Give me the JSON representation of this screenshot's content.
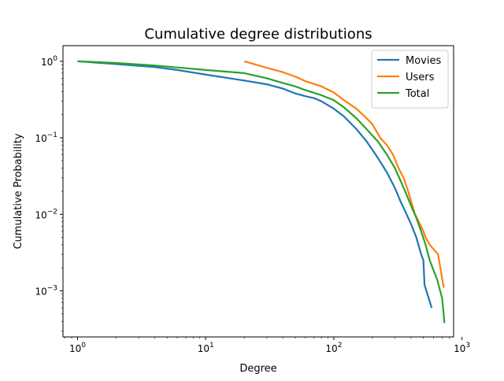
{
  "chart_data": {
    "type": "line",
    "title": "Cumulative degree distributions",
    "xlabel": "Degree",
    "ylabel": "Cumulative Probability",
    "x_scale": "log",
    "y_scale": "log",
    "xlim": [
      0.77,
      860
    ],
    "ylim": [
      0.00025,
      1.6
    ],
    "grid": false,
    "legend_position": "top-right",
    "x_ticks": [
      {
        "value": 1,
        "base": "10",
        "exp": "0"
      },
      {
        "value": 10,
        "base": "10",
        "exp": "1"
      },
      {
        "value": 100,
        "base": "10",
        "exp": "2"
      },
      {
        "value": 1000,
        "base": "10",
        "exp": "3"
      }
    ],
    "y_ticks": [
      {
        "value": 0.001,
        "base": "10",
        "exp": "−3"
      },
      {
        "value": 0.01,
        "base": "10",
        "exp": "−2"
      },
      {
        "value": 0.1,
        "base": "10",
        "exp": "−1"
      },
      {
        "value": 1,
        "base": "10",
        "exp": "0"
      }
    ],
    "series": [
      {
        "name": "Movies",
        "color": "#1f77b4",
        "points": [
          [
            1,
            1.0
          ],
          [
            2,
            0.92
          ],
          [
            4,
            0.84
          ],
          [
            6,
            0.77
          ],
          [
            10,
            0.67
          ],
          [
            20,
            0.56
          ],
          [
            30,
            0.5
          ],
          [
            40,
            0.44
          ],
          [
            50,
            0.38
          ],
          [
            60,
            0.35
          ],
          [
            70,
            0.33
          ],
          [
            80,
            0.3
          ],
          [
            100,
            0.24
          ],
          [
            120,
            0.19
          ],
          [
            150,
            0.13
          ],
          [
            180,
            0.09
          ],
          [
            220,
            0.055
          ],
          [
            260,
            0.035
          ],
          [
            300,
            0.022
          ],
          [
            330,
            0.015
          ],
          [
            360,
            0.011
          ],
          [
            400,
            0.0075
          ],
          [
            440,
            0.005
          ],
          [
            480,
            0.003
          ],
          [
            500,
            0.0025
          ],
          [
            510,
            0.0012
          ],
          [
            580,
            0.0006
          ]
        ]
      },
      {
        "name": "Users",
        "color": "#ff7f0e",
        "points": [
          [
            20,
            1.0
          ],
          [
            30,
            0.82
          ],
          [
            40,
            0.72
          ],
          [
            50,
            0.63
          ],
          [
            60,
            0.55
          ],
          [
            80,
            0.47
          ],
          [
            100,
            0.39
          ],
          [
            120,
            0.31
          ],
          [
            150,
            0.24
          ],
          [
            180,
            0.18
          ],
          [
            200,
            0.15
          ],
          [
            230,
            0.1
          ],
          [
            260,
            0.08
          ],
          [
            290,
            0.06
          ],
          [
            320,
            0.04
          ],
          [
            350,
            0.03
          ],
          [
            380,
            0.02
          ],
          [
            400,
            0.015
          ],
          [
            430,
            0.01
          ],
          [
            460,
            0.008
          ],
          [
            500,
            0.006
          ],
          [
            520,
            0.005
          ],
          [
            560,
            0.004
          ],
          [
            650,
            0.003
          ],
          [
            720,
            0.0011
          ]
        ]
      },
      {
        "name": "Total",
        "color": "#2ca02c",
        "points": [
          [
            1,
            1.0
          ],
          [
            2,
            0.95
          ],
          [
            4,
            0.88
          ],
          [
            6,
            0.83
          ],
          [
            10,
            0.77
          ],
          [
            20,
            0.7
          ],
          [
            30,
            0.6
          ],
          [
            40,
            0.52
          ],
          [
            50,
            0.47
          ],
          [
            60,
            0.42
          ],
          [
            80,
            0.36
          ],
          [
            100,
            0.31
          ],
          [
            120,
            0.25
          ],
          [
            150,
            0.18
          ],
          [
            180,
            0.13
          ],
          [
            220,
            0.09
          ],
          [
            260,
            0.06
          ],
          [
            300,
            0.04
          ],
          [
            330,
            0.028
          ],
          [
            360,
            0.02
          ],
          [
            400,
            0.013
          ],
          [
            440,
            0.009
          ],
          [
            480,
            0.006
          ],
          [
            520,
            0.004
          ],
          [
            560,
            0.0025
          ],
          [
            640,
            0.0014
          ],
          [
            700,
            0.0008
          ],
          [
            730,
            0.00038
          ]
        ]
      }
    ]
  }
}
